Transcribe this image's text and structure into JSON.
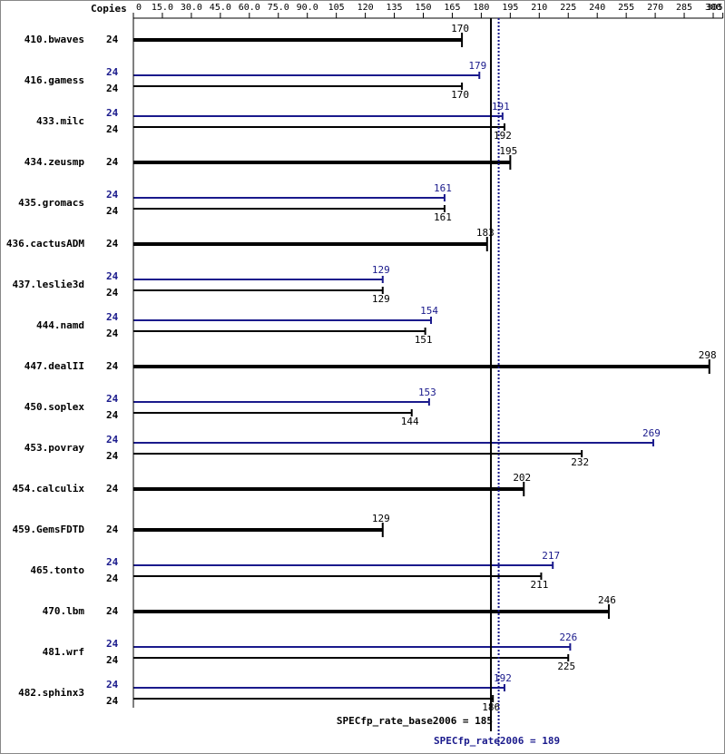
{
  "chart_data": {
    "type": "bar",
    "orientation": "horizontal",
    "copies_header": "Copies",
    "categories": [
      "410.bwaves",
      "416.gamess",
      "433.milc",
      "434.zeusmp",
      "435.gromacs",
      "436.cactusADM",
      "437.leslie3d",
      "444.namd",
      "447.dealII",
      "450.soplex",
      "453.povray",
      "454.calculix",
      "459.GemsFDTD",
      "465.tonto",
      "470.lbm",
      "481.wrf",
      "482.sphinx3"
    ],
    "series": [
      {
        "color": "#000000",
        "copies": [
          24,
          24,
          24,
          24,
          24,
          24,
          24,
          24,
          24,
          24,
          24,
          24,
          24,
          24,
          24,
          24,
          24
        ],
        "values": [
          170,
          170,
          192,
          195,
          161,
          183,
          129,
          151,
          298,
          144,
          232,
          202,
          129,
          211,
          246,
          225,
          186
        ]
      },
      {
        "color": "#1a1a8c",
        "copies": [
          null,
          24,
          24,
          null,
          24,
          null,
          24,
          24,
          null,
          24,
          24,
          null,
          null,
          24,
          null,
          24,
          24
        ],
        "values": [
          null,
          179,
          191,
          null,
          161,
          null,
          129,
          154,
          null,
          153,
          269,
          null,
          null,
          217,
          null,
          226,
          192
        ]
      }
    ],
    "xlim": [
      0,
      305
    ],
    "xticks": [
      0,
      {
        "value": 15,
        "label": "15.0"
      },
      {
        "value": 30,
        "label": "30.0"
      },
      {
        "value": 45,
        "label": "45.0"
      },
      {
        "value": 60,
        "label": "60.0"
      },
      {
        "value": 75,
        "label": "75.0"
      },
      {
        "value": 90,
        "label": "90.0"
      },
      105,
      120,
      135,
      150,
      165,
      180,
      195,
      210,
      225,
      240,
      255,
      270,
      285,
      300,
      305
    ],
    "base_metric": {
      "label": "SPECfp_rate_base2006 = 185",
      "value": 185
    },
    "peak_metric": {
      "label": "SPECfp_rate2006 = 189",
      "value": 189
    }
  }
}
